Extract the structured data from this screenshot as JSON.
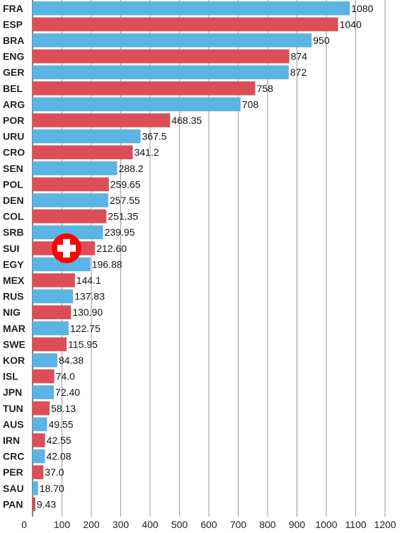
{
  "chart_data": {
    "type": "bar",
    "orientation": "horizontal",
    "categories": [
      "FRA",
      "ESP",
      "BRA",
      "ENG",
      "GER",
      "BEL",
      "ARG",
      "POR",
      "URU",
      "CRO",
      "SEN",
      "POL",
      "DEN",
      "COL",
      "SRB",
      "SUI",
      "EGY",
      "MEX",
      "RUS",
      "NIG",
      "MAR",
      "SWE",
      "KOR",
      "ISL",
      "JPN",
      "TUN",
      "AUS",
      "IRN",
      "CRC",
      "PER",
      "SAU",
      "PAN"
    ],
    "values": [
      1080,
      1040,
      950,
      874,
      872,
      758,
      708,
      468.35,
      367.5,
      341.2,
      288.2,
      259.65,
      257.55,
      251.35,
      239.95,
      212.6,
      196.88,
      144.1,
      137.83,
      130.9,
      122.75,
      115.95,
      84.38,
      74.0,
      72.4,
      58.13,
      49.55,
      42.55,
      42.08,
      37.0,
      18.7,
      9.43
    ],
    "value_labels": [
      "1080",
      "1040",
      "950",
      "874",
      "872",
      "758",
      "708",
      "468.35",
      "367.5",
      "341.2",
      "288.2",
      "259.65",
      "257.55",
      "251.35",
      "239.95",
      "212.60",
      "196.88",
      "144.1",
      "137.83",
      "130.90",
      "122.75",
      "115.95",
      "84.38",
      "74.0",
      "72.40",
      "58.13",
      "49.55",
      "42.55",
      "42.08",
      "37.0",
      "18.70",
      "9.43"
    ],
    "x_ticks": [
      0,
      100,
      200,
      300,
      400,
      500,
      600,
      700,
      800,
      900,
      1000,
      1100,
      1200
    ],
    "xlim": [
      0,
      1200
    ],
    "grid": true,
    "colors": {
      "blue": "#5ab4e5",
      "red": "#dd4f57"
    },
    "bar_color_pattern": [
      "blue",
      "red"
    ],
    "highlight": {
      "category": "SUI",
      "icon": "swiss-cross-icon",
      "icon_color": "#ff0000"
    }
  }
}
